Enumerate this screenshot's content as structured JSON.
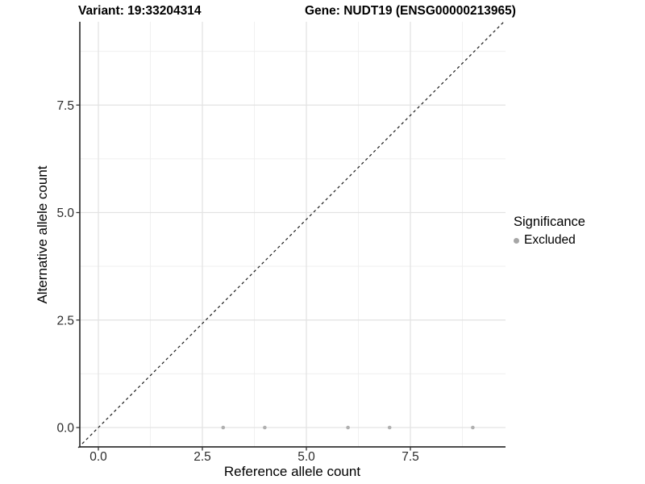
{
  "chart_data": {
    "type": "scatter",
    "title_left": "Variant: 19:33204314",
    "title_right": "Gene: NUDT19 (ENSG00000213965)",
    "xlabel": "Reference allele count",
    "ylabel": "Alternative allele count",
    "x_ticks": [
      0.0,
      2.5,
      5.0,
      7.5
    ],
    "x_tick_labels": [
      "0.0",
      "2.5",
      "5.0",
      "7.5"
    ],
    "y_ticks": [
      0.0,
      2.5,
      5.0,
      7.5
    ],
    "y_tick_labels": [
      "0.0",
      "2.5",
      "5.0",
      "7.5"
    ],
    "x_minor_ticks": [
      1.25,
      3.75,
      6.25,
      8.75
    ],
    "y_minor_ticks": [
      1.25,
      3.75,
      6.25,
      8.75
    ],
    "xlim": [
      -0.45,
      9.8
    ],
    "ylim": [
      -0.45,
      9.45
    ],
    "grid": true,
    "series": [
      {
        "name": "Excluded",
        "color": "#b0b0b0",
        "points": [
          [
            3,
            0
          ],
          [
            4,
            0
          ],
          [
            6,
            0
          ],
          [
            7,
            0
          ],
          [
            9,
            0
          ]
        ]
      }
    ],
    "reference_line": {
      "type": "identity",
      "slope": 1,
      "intercept": 0,
      "style": "dashed",
      "color": "#1a1a1a"
    },
    "legend": {
      "title": "Significance",
      "position": "right",
      "items": [
        {
          "label": "Excluded",
          "color": "#a6a6a6"
        }
      ]
    }
  },
  "colors": {
    "panel_background": "#ffffff",
    "grid_major": "#e3e3e3",
    "grid_minor": "#efefef",
    "axis_line": "#333333",
    "tick_label": "#2b2b2b",
    "point": "#b0b0b0"
  }
}
